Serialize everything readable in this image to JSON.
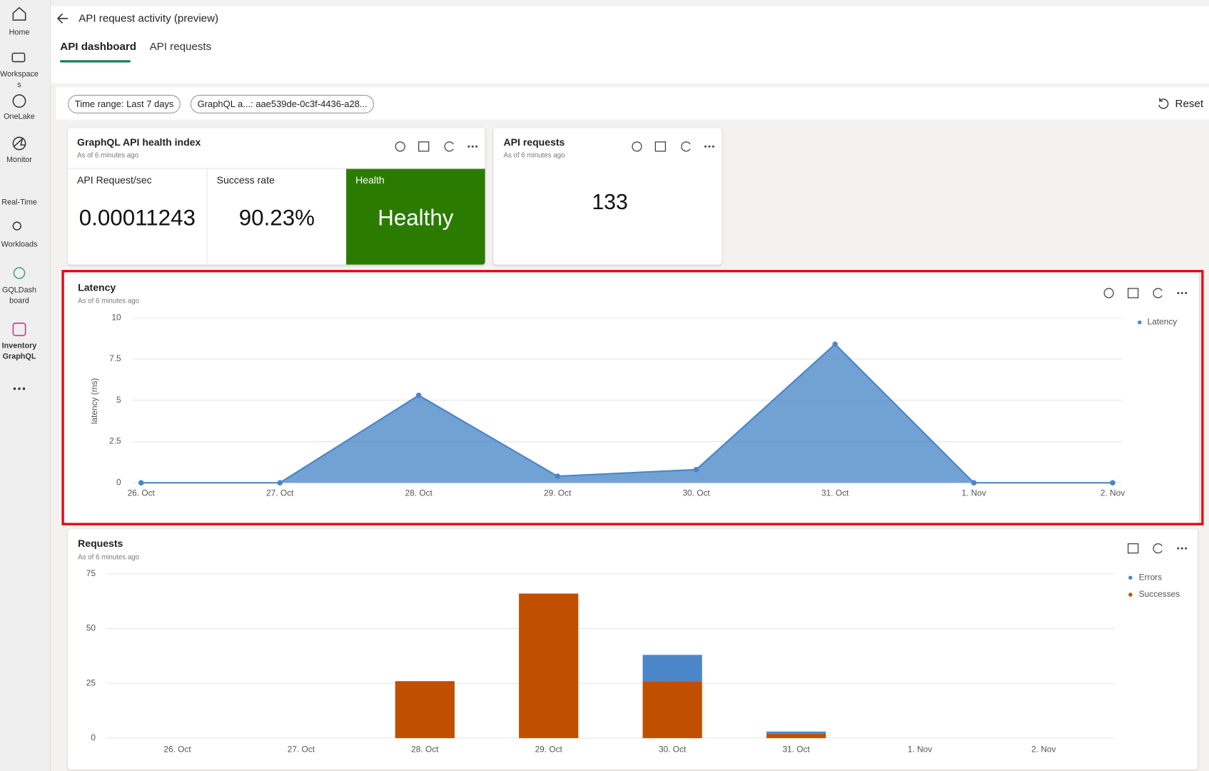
{
  "sidebar": {
    "items": [
      "Home",
      "Workspaces",
      "OneLake",
      "Monitor",
      "Real-Time",
      "Workloads",
      "GQLDashboard",
      "Inventory GraphQL"
    ]
  },
  "header": {
    "title": "API request activity (preview)",
    "tabs": [
      "API dashboard",
      "API requests"
    ]
  },
  "filters": {
    "chips": [
      "Time range: Last 7 days",
      "GraphQL a...: aae539de-0c3f-4436-a28..."
    ],
    "reset": "Reset"
  },
  "health_card": {
    "title": "GraphQL API health index",
    "subtitle": "As of 6 minutes ago",
    "tiles": [
      {
        "label": "API Request/sec",
        "value": "0.00011243"
      },
      {
        "label": "Success rate",
        "value": "90.23%"
      },
      {
        "label": "Health",
        "value": "Healthy"
      }
    ]
  },
  "requests_card": {
    "title": "API requests",
    "subtitle": "As of 6 minutes ago",
    "value": 133
  },
  "latency_chart": {
    "type": "area",
    "title": "Latency",
    "subtitle": "As of 6 minutes ago",
    "y_label": "latency (ms)",
    "categories": [
      "26. Oct",
      "27. Oct",
      "28. Oct",
      "29. Oct",
      "30. Oct",
      "31. Oct",
      "1. Nov",
      "2. Nov"
    ],
    "series": [
      {
        "name": "Latency",
        "color": "#4a86c8",
        "values": [
          0,
          0,
          5.3,
          0.4,
          0.8,
          8.4,
          0,
          0
        ]
      }
    ],
    "ylim": [
      0,
      10
    ],
    "yticks": [
      0,
      2.5,
      5,
      7.5,
      10
    ],
    "grid": true,
    "legend": "top-right"
  },
  "requests_chart": {
    "type": "stacked-bar",
    "title": "Requests",
    "subtitle": "As of 6 minutes ago",
    "categories": [
      "26. Oct",
      "27. Oct",
      "28. Oct",
      "29. Oct",
      "30. Oct",
      "31. Oct",
      "1. Nov",
      "2. Nov"
    ],
    "series": [
      {
        "name": "Errors",
        "color": "#4a86c8",
        "values": [
          0,
          0,
          0,
          0,
          12,
          1,
          0,
          0
        ]
      },
      {
        "name": "Successes",
        "color": "#c04f00",
        "values": [
          0,
          0,
          26,
          66,
          26,
          2,
          0,
          0
        ]
      }
    ],
    "ylim": [
      0,
      75
    ],
    "yticks": [
      0,
      25,
      50,
      75
    ],
    "grid": true,
    "legend": "top-right"
  }
}
